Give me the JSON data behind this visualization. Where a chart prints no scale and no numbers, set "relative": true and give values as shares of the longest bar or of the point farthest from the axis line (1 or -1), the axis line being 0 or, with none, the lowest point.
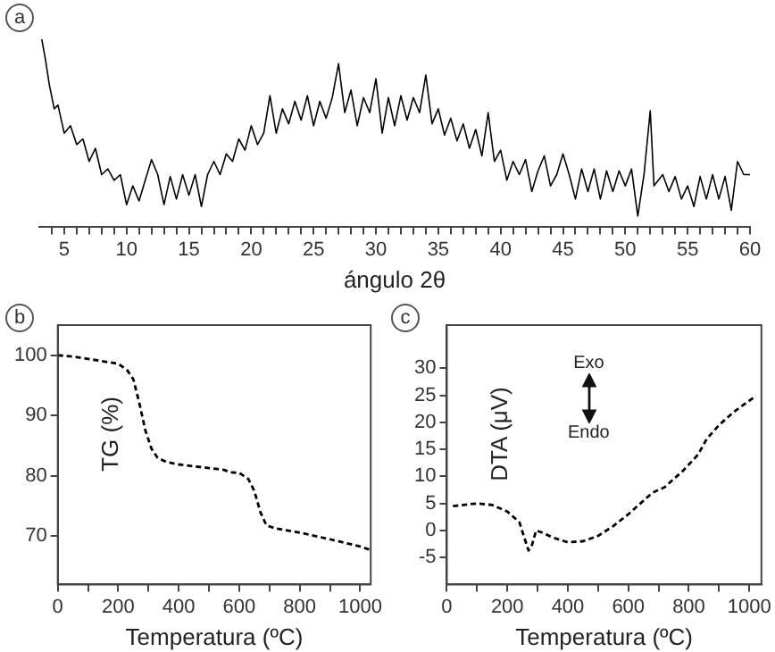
{
  "chart_data": [
    {
      "type": "line",
      "title": "a",
      "xlabel": "ángulo 2θ",
      "relative": true,
      "color": "#000000",
      "marker": "none",
      "line_style": "solid",
      "grid": false,
      "legend": false,
      "xlim": [
        3,
        60
      ],
      "xticks": [
        {
          "value": 4,
          "label": null
        },
        5,
        {
          "value": 6,
          "label": null
        },
        {
          "value": 7,
          "label": null
        },
        {
          "value": 8,
          "label": null
        },
        {
          "value": 9,
          "label": null
        },
        10,
        {
          "value": 11,
          "label": null
        },
        {
          "value": 12,
          "label": null
        },
        {
          "value": 13,
          "label": null
        },
        {
          "value": 14,
          "label": null
        },
        15,
        {
          "value": 16,
          "label": null
        },
        {
          "value": 17,
          "label": null
        },
        {
          "value": 18,
          "label": null
        },
        {
          "value": 19,
          "label": null
        },
        20,
        {
          "value": 21,
          "label": null
        },
        {
          "value": 22,
          "label": null
        },
        {
          "value": 23,
          "label": null
        },
        {
          "value": 24,
          "label": null
        },
        25,
        {
          "value": 26,
          "label": null
        },
        {
          "value": 27,
          "label": null
        },
        {
          "value": 28,
          "label": null
        },
        {
          "value": 29,
          "label": null
        },
        30,
        {
          "value": 31,
          "label": null
        },
        {
          "value": 32,
          "label": null
        },
        {
          "value": 33,
          "label": null
        },
        {
          "value": 34,
          "label": null
        },
        35,
        {
          "value": 36,
          "label": null
        },
        {
          "value": 37,
          "label": null
        },
        {
          "value": 38,
          "label": null
        },
        {
          "value": 39,
          "label": null
        },
        40,
        {
          "value": 41,
          "label": null
        },
        {
          "value": 42,
          "label": null
        },
        {
          "value": 43,
          "label": null
        },
        {
          "value": 44,
          "label": null
        },
        45,
        {
          "value": 46,
          "label": null
        },
        {
          "value": 47,
          "label": null
        },
        {
          "value": 48,
          "label": null
        },
        {
          "value": 49,
          "label": null
        },
        50,
        {
          "value": 51,
          "label": null
        },
        {
          "value": 52,
          "label": null
        },
        {
          "value": 53,
          "label": null
        },
        {
          "value": 54,
          "label": null
        },
        55,
        {
          "value": 56,
          "label": null
        },
        {
          "value": 57,
          "label": null
        },
        {
          "value": 58,
          "label": null
        },
        {
          "value": 59,
          "label": null
        },
        60
      ],
      "x": [
        3.2,
        3.5,
        3.8,
        4.2,
        4.5,
        5,
        5.5,
        6,
        6.5,
        7,
        7.5,
        8,
        8.5,
        9,
        9.5,
        10,
        10.5,
        11,
        11.5,
        12,
        12.5,
        13,
        13.5,
        14,
        14.5,
        15,
        15.5,
        16,
        16.5,
        17,
        17.5,
        18,
        18.5,
        19,
        19.5,
        20,
        20.5,
        21,
        21.5,
        22,
        22.5,
        23,
        23.5,
        24,
        24.5,
        25,
        25.5,
        26,
        26.5,
        27,
        27.5,
        28,
        28.5,
        29,
        29.5,
        30,
        30.5,
        31,
        31.5,
        32,
        32.5,
        33,
        33.5,
        34,
        34.5,
        35,
        35.5,
        36,
        36.5,
        37,
        37.5,
        38,
        38.5,
        39,
        39.5,
        40,
        40.5,
        41,
        41.5,
        42,
        42.5,
        43,
        43.5,
        44,
        44.5,
        45,
        45.5,
        46,
        46.5,
        47,
        47.5,
        48,
        48.5,
        49,
        49.5,
        50,
        50.5,
        51,
        51.5,
        52,
        52.3,
        53,
        53.5,
        54,
        54.5,
        55,
        55.5,
        56,
        56.5,
        57,
        57.5,
        58,
        58.5,
        59,
        59.5,
        60
      ],
      "values": [
        1.0,
        0.89,
        0.76,
        0.63,
        0.65,
        0.5,
        0.54,
        0.44,
        0.47,
        0.35,
        0.42,
        0.28,
        0.31,
        0.25,
        0.28,
        0.12,
        0.22,
        0.14,
        0.25,
        0.36,
        0.28,
        0.12,
        0.27,
        0.15,
        0.28,
        0.17,
        0.28,
        0.11,
        0.28,
        0.35,
        0.28,
        0.39,
        0.35,
        0.47,
        0.41,
        0.54,
        0.44,
        0.5,
        0.7,
        0.5,
        0.63,
        0.55,
        0.67,
        0.57,
        0.7,
        0.54,
        0.67,
        0.58,
        0.69,
        0.87,
        0.61,
        0.73,
        0.54,
        0.69,
        0.61,
        0.79,
        0.5,
        0.69,
        0.54,
        0.7,
        0.57,
        0.69,
        0.61,
        0.81,
        0.55,
        0.63,
        0.49,
        0.58,
        0.46,
        0.55,
        0.42,
        0.52,
        0.38,
        0.61,
        0.35,
        0.41,
        0.25,
        0.35,
        0.28,
        0.36,
        0.19,
        0.3,
        0.38,
        0.22,
        0.28,
        0.39,
        0.28,
        0.15,
        0.31,
        0.19,
        0.31,
        0.15,
        0.3,
        0.19,
        0.3,
        0.22,
        0.31,
        0.06,
        0.28,
        0.62,
        0.22,
        0.28,
        0.19,
        0.27,
        0.15,
        0.22,
        0.11,
        0.27,
        0.15,
        0.28,
        0.15,
        0.27,
        0.09,
        0.35,
        0.28,
        0.28
      ]
    },
    {
      "type": "line",
      "title": "b",
      "xlabel": "Temperatura (ºC)",
      "ylabel": "TG (%)",
      "color": "#000000",
      "marker": "none",
      "line_style": "dashed",
      "grid": false,
      "legend": false,
      "xlim": [
        0,
        1035
      ],
      "xticks": [
        0,
        {
          "value": 100,
          "label": null
        },
        200,
        {
          "value": 300,
          "label": null
        },
        400,
        {
          "value": 500,
          "label": null
        },
        600,
        {
          "value": 700,
          "label": null
        },
        800,
        {
          "value": 900,
          "label": null
        },
        1000
      ],
      "ylim": [
        62,
        105
      ],
      "yticks": [
        70,
        80,
        90,
        100
      ],
      "x": [
        0,
        50,
        100,
        150,
        200,
        230,
        250,
        270,
        290,
        310,
        330,
        360,
        400,
        450,
        500,
        550,
        570,
        600,
        630,
        650,
        670,
        690,
        720,
        800,
        900,
        1000,
        1030
      ],
      "values": [
        100,
        99.8,
        99.4,
        99.0,
        98.6,
        97.5,
        96,
        92,
        87.5,
        84.5,
        83,
        82.3,
        81.9,
        81.6,
        81.3,
        81,
        80.6,
        80.5,
        79.5,
        77.5,
        74,
        71.8,
        71.3,
        70.6,
        69.5,
        68.3,
        67.8
      ]
    },
    {
      "type": "line",
      "title": "c",
      "xlabel": "Temperatura (ºC)",
      "ylabel": "DTA (μV)",
      "annotations": [
        "Exo",
        "Endo"
      ],
      "color": "#000000",
      "marker": "none",
      "line_style": "dashed",
      "grid": false,
      "legend": false,
      "xlim": [
        0,
        1040
      ],
      "xticks": [
        0,
        {
          "value": 100,
          "label": null
        },
        200,
        {
          "value": 300,
          "label": null
        },
        400,
        {
          "value": 500,
          "label": null
        },
        600,
        {
          "value": 700,
          "label": null
        },
        800,
        {
          "value": 900,
          "label": null
        },
        1000
      ],
      "ylim": [
        -10,
        38
      ],
      "yticks": [
        -5,
        0,
        5,
        10,
        15,
        20,
        25,
        30
      ],
      "x": [
        20,
        100,
        150,
        200,
        240,
        260,
        270,
        280,
        295,
        320,
        350,
        400,
        450,
        500,
        550,
        600,
        650,
        680,
        720,
        780,
        830,
        860,
        900,
        950,
        1000,
        1020
      ],
      "values": [
        4.5,
        5,
        4.7,
        3.5,
        1.5,
        -2,
        -3.7,
        -3,
        0,
        -0.5,
        -1.3,
        -2.2,
        -2,
        -1,
        0.8,
        3,
        5.5,
        7,
        8,
        11,
        14,
        17,
        19.5,
        22,
        24,
        24.8
      ]
    }
  ]
}
